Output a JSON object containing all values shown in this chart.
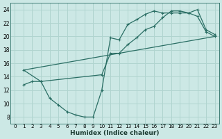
{
  "xlabel": "Humidex (Indice chaleur)",
  "bg_color": "#cce8e5",
  "grid_color": "#b0d4cf",
  "line_color": "#2a6e64",
  "xlim": [
    -0.5,
    23.5
  ],
  "ylim": [
    7.0,
    25.0
  ],
  "xticks": [
    0,
    1,
    2,
    3,
    4,
    5,
    6,
    7,
    8,
    9,
    10,
    11,
    12,
    13,
    14,
    15,
    16,
    17,
    18,
    19,
    20,
    21,
    22,
    23
  ],
  "yticks": [
    8,
    10,
    12,
    14,
    16,
    18,
    20,
    22,
    24
  ],
  "line1_x": [
    1,
    2,
    3,
    4,
    5,
    6,
    7,
    8,
    9,
    10,
    11,
    12,
    13,
    14,
    15,
    16,
    17,
    18,
    19,
    20,
    21,
    22,
    23
  ],
  "line1_y": [
    12.8,
    13.3,
    13.3,
    10.8,
    9.8,
    8.8,
    8.3,
    8.0,
    8.0,
    12.0,
    19.8,
    19.5,
    21.8,
    22.5,
    23.3,
    23.8,
    23.5,
    23.5,
    23.5,
    23.5,
    23.0,
    20.7,
    20.0
  ],
  "line2_x": [
    1,
    3,
    10,
    11,
    12,
    13,
    14,
    15,
    16,
    17,
    18,
    19,
    20,
    21,
    22,
    23
  ],
  "line2_y": [
    15.0,
    13.3,
    14.3,
    17.5,
    17.5,
    18.8,
    19.8,
    21.0,
    21.5,
    22.8,
    23.8,
    23.8,
    23.5,
    24.0,
    21.0,
    20.3
  ],
  "line3_x": [
    1,
    23
  ],
  "line3_y": [
    15.0,
    20.0
  ]
}
